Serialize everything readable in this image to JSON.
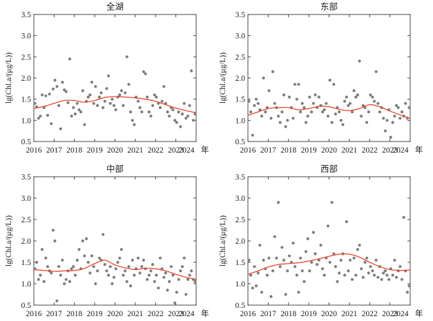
{
  "figure": {
    "unit_suffix": "年"
  },
  "colors": {
    "points": "#7d7d7d",
    "trend": "#e8442c",
    "axes": "#333333"
  },
  "chart_data": [
    {
      "type": "scatter",
      "title": "全湖",
      "ylabel": "lg(Chl.a/(μg/L))",
      "xlabel": "",
      "xlim": [
        2016,
        2024
      ],
      "ylim": [
        0.5,
        3.5
      ],
      "xticks": [
        2016,
        2017,
        2018,
        2019,
        2020,
        2021,
        2022,
        2023,
        2024
      ],
      "yticks": [
        0.5,
        1.0,
        1.5,
        2.0,
        2.5,
        3.0,
        3.5
      ],
      "points": {
        "x": [
          2016.05,
          2016.14,
          2016.23,
          2016.32,
          2016.41,
          2016.5,
          2016.59,
          2016.68,
          2016.77,
          2016.86,
          2016.95,
          2017.04,
          2017.14,
          2017.23,
          2017.32,
          2017.41,
          2017.5,
          2017.59,
          2017.68,
          2017.77,
          2017.86,
          2017.95,
          2018.04,
          2018.14,
          2018.23,
          2018.32,
          2018.41,
          2018.5,
          2018.59,
          2018.68,
          2018.77,
          2018.86,
          2018.95,
          2019.04,
          2019.14,
          2019.23,
          2019.32,
          2019.41,
          2019.5,
          2019.59,
          2019.68,
          2019.77,
          2019.86,
          2019.95,
          2020.04,
          2020.14,
          2020.23,
          2020.32,
          2020.41,
          2020.5,
          2020.59,
          2020.68,
          2020.77,
          2020.86,
          2020.95,
          2021.04,
          2021.14,
          2021.23,
          2021.32,
          2021.41,
          2021.5,
          2021.59,
          2021.68,
          2021.77,
          2021.86,
          2021.95,
          2022.04,
          2022.14,
          2022.23,
          2022.32,
          2022.41,
          2022.5,
          2022.59,
          2022.68,
          2022.77,
          2022.86,
          2022.95,
          2023.04,
          2023.14,
          2023.23,
          2023.32,
          2023.41,
          2023.5,
          2023.59,
          2023.68,
          2023.77,
          2023.86,
          2023.95
        ],
        "y": [
          1.4,
          1.32,
          1.05,
          1.1,
          1.6,
          1.3,
          1.58,
          1.12,
          1.62,
          0.92,
          1.74,
          1.95,
          1.8,
          1.35,
          0.8,
          1.9,
          1.72,
          1.68,
          1.42,
          2.45,
          1.1,
          1.3,
          1.15,
          1.4,
          1.25,
          1.2,
          1.7,
          0.9,
          1.45,
          1.55,
          1.6,
          1.9,
          1.4,
          1.8,
          1.35,
          1.55,
          1.65,
          1.3,
          1.45,
          1.75,
          2.05,
          1.4,
          1.5,
          1.35,
          1.25,
          1.55,
          1.6,
          1.7,
          1.35,
          1.65,
          2.5,
          1.85,
          1.2,
          1.0,
          0.9,
          1.55,
          1.45,
          1.3,
          1.2,
          2.15,
          2.1,
          1.55,
          1.2,
          1.1,
          1.35,
          1.6,
          1.55,
          1.4,
          1.3,
          1.45,
          1.8,
          1.4,
          1.2,
          1.1,
          1.3,
          1.25,
          1.0,
          0.95,
          1.2,
          0.85,
          1.15,
          1.4,
          1.05,
          1.1,
          1.35,
          2.17,
          1.0,
          1.15
        ]
      },
      "trend": {
        "x": [
          2016.0,
          2016.5,
          2017.0,
          2017.5,
          2018.0,
          2018.5,
          2019.0,
          2019.5,
          2020.0,
          2020.5,
          2021.0,
          2021.5,
          2022.0,
          2022.5,
          2023.0,
          2023.5,
          2024.0
        ],
        "y": [
          1.28,
          1.33,
          1.4,
          1.47,
          1.47,
          1.43,
          1.47,
          1.54,
          1.56,
          1.55,
          1.53,
          1.5,
          1.45,
          1.37,
          1.29,
          1.23,
          1.18
        ]
      }
    },
    {
      "type": "scatter",
      "title": "东部",
      "ylabel": "lg(Chl.a/(μg/L))",
      "xlabel": "",
      "xlim": [
        2016,
        2024
      ],
      "ylim": [
        0.5,
        3.5
      ],
      "xticks": [
        2016,
        2017,
        2018,
        2019,
        2020,
        2021,
        2022,
        2023,
        2024
      ],
      "yticks": [
        0.5,
        1.0,
        1.5,
        2.0,
        2.5,
        3.0,
        3.5
      ],
      "points": {
        "x": [
          2016.05,
          2016.14,
          2016.23,
          2016.32,
          2016.41,
          2016.5,
          2016.59,
          2016.68,
          2016.77,
          2016.86,
          2016.95,
          2017.04,
          2017.14,
          2017.23,
          2017.32,
          2017.41,
          2017.5,
          2017.59,
          2017.68,
          2017.77,
          2017.86,
          2017.95,
          2018.04,
          2018.14,
          2018.23,
          2018.32,
          2018.41,
          2018.5,
          2018.59,
          2018.68,
          2018.77,
          2018.86,
          2018.95,
          2019.04,
          2019.14,
          2019.23,
          2019.32,
          2019.41,
          2019.5,
          2019.59,
          2019.68,
          2019.77,
          2019.86,
          2019.95,
          2020.04,
          2020.14,
          2020.23,
          2020.32,
          2020.41,
          2020.5,
          2020.59,
          2020.68,
          2020.77,
          2020.86,
          2020.95,
          2021.04,
          2021.14,
          2021.23,
          2021.32,
          2021.41,
          2021.5,
          2021.59,
          2021.68,
          2021.77,
          2021.86,
          2021.95,
          2022.04,
          2022.14,
          2022.23,
          2022.32,
          2022.41,
          2022.5,
          2022.59,
          2022.68,
          2022.77,
          2022.86,
          2022.95,
          2023.04,
          2023.14,
          2023.23,
          2023.32,
          2023.41,
          2023.5,
          2023.59,
          2023.68,
          2023.77,
          2023.86,
          2023.95
        ],
        "y": [
          1.45,
          1.2,
          0.65,
          1.35,
          1.5,
          1.4,
          1.25,
          1.1,
          2.0,
          1.2,
          1.3,
          1.7,
          1.05,
          2.15,
          1.4,
          1.3,
          1.1,
          0.95,
          1.2,
          1.6,
          0.85,
          1.0,
          1.55,
          1.3,
          1.05,
          1.85,
          1.5,
          1.85,
          1.2,
          1.4,
          1.3,
          0.95,
          1.1,
          1.55,
          1.2,
          1.4,
          1.6,
          1.3,
          1.55,
          1.35,
          1.2,
          1.25,
          1.4,
          1.1,
          1.95,
          0.95,
          1.85,
          1.15,
          1.3,
          1.2,
          1.0,
          0.9,
          1.45,
          1.55,
          1.35,
          1.4,
          1.2,
          1.7,
          1.55,
          1.6,
          2.4,
          1.1,
          1.35,
          1.3,
          0.95,
          1.2,
          1.6,
          1.55,
          1.45,
          2.15,
          1.4,
          1.2,
          1.3,
          1.05,
          0.75,
          1.0,
          1.25,
          0.6,
          0.95,
          1.1,
          1.35,
          1.3,
          1.05,
          1.2,
          1.1,
          1.4,
          1.05,
          1.3
        ]
      },
      "trend": {
        "x": [
          2016.0,
          2016.5,
          2017.0,
          2017.5,
          2018.0,
          2018.5,
          2019.0,
          2019.5,
          2020.0,
          2020.5,
          2021.0,
          2021.5,
          2022.0,
          2022.5,
          2023.0,
          2023.5,
          2024.0
        ],
        "y": [
          1.12,
          1.2,
          1.28,
          1.3,
          1.3,
          1.25,
          1.28,
          1.33,
          1.32,
          1.26,
          1.23,
          1.28,
          1.37,
          1.32,
          1.22,
          1.13,
          1.05
        ]
      }
    },
    {
      "type": "scatter",
      "title": "中部",
      "ylabel": "lg(Chl.a/(μg/L))",
      "xlabel": "",
      "xlim": [
        2016,
        2024
      ],
      "ylim": [
        0.5,
        3.5
      ],
      "xticks": [
        2016,
        2017,
        2018,
        2019,
        2020,
        2021,
        2022,
        2023,
        2024
      ],
      "yticks": [
        0.5,
        1.0,
        1.5,
        2.0,
        2.5,
        3.0,
        3.5
      ],
      "points": {
        "x": [
          2016.05,
          2016.14,
          2016.23,
          2016.32,
          2016.41,
          2016.5,
          2016.59,
          2016.68,
          2016.77,
          2016.86,
          2016.95,
          2017.04,
          2017.14,
          2017.23,
          2017.32,
          2017.41,
          2017.5,
          2017.59,
          2017.68,
          2017.77,
          2017.86,
          2017.95,
          2018.04,
          2018.14,
          2018.23,
          2018.32,
          2018.41,
          2018.5,
          2018.59,
          2018.68,
          2018.77,
          2018.86,
          2018.95,
          2019.04,
          2019.14,
          2019.23,
          2019.32,
          2019.41,
          2019.5,
          2019.59,
          2019.68,
          2019.77,
          2019.86,
          2019.95,
          2020.04,
          2020.14,
          2020.23,
          2020.32,
          2020.41,
          2020.5,
          2020.59,
          2020.68,
          2020.77,
          2020.86,
          2020.95,
          2021.04,
          2021.14,
          2021.23,
          2021.32,
          2021.41,
          2021.5,
          2021.59,
          2021.68,
          2021.77,
          2021.86,
          2021.95,
          2022.04,
          2022.14,
          2022.23,
          2022.32,
          2022.41,
          2022.5,
          2022.59,
          2022.68,
          2022.77,
          2022.86,
          2022.95,
          2023.04,
          2023.14,
          2023.23,
          2023.32,
          2023.41,
          2023.5,
          2023.59,
          2023.68,
          2023.77,
          2023.86,
          2023.95
        ],
        "y": [
          1.35,
          1.5,
          1.1,
          1.2,
          1.8,
          1.05,
          1.6,
          1.4,
          1.3,
          1.25,
          2.25,
          2.0,
          0.6,
          1.4,
          1.2,
          1.55,
          1.0,
          1.1,
          1.3,
          1.05,
          1.35,
          1.4,
          1.2,
          1.55,
          1.8,
          1.35,
          2.0,
          1.65,
          2.05,
          1.5,
          1.25,
          1.65,
          1.4,
          1.0,
          1.3,
          1.6,
          1.55,
          2.15,
          1.45,
          1.3,
          1.2,
          1.4,
          1.0,
          1.15,
          1.35,
          1.5,
          1.6,
          1.8,
          1.2,
          1.3,
          1.05,
          1.4,
          0.95,
          1.55,
          1.2,
          1.35,
          1.6,
          1.25,
          1.4,
          1.55,
          1.35,
          1.1,
          1.2,
          1.3,
          1.45,
          1.05,
          1.2,
          0.9,
          1.6,
          1.35,
          1.15,
          1.25,
          0.85,
          1.05,
          1.4,
          1.2,
          0.55,
          0.8,
          1.1,
          1.3,
          1.4,
          1.6,
          0.75,
          1.1,
          1.2,
          1.3,
          1.1,
          1.05
        ]
      },
      "trend": {
        "x": [
          2016.0,
          2016.5,
          2017.0,
          2017.5,
          2018.0,
          2018.5,
          2019.0,
          2019.5,
          2020.0,
          2020.5,
          2021.0,
          2021.5,
          2022.0,
          2022.5,
          2023.0,
          2023.5,
          2024.0
        ],
        "y": [
          1.33,
          1.31,
          1.29,
          1.3,
          1.31,
          1.36,
          1.47,
          1.55,
          1.44,
          1.37,
          1.33,
          1.36,
          1.35,
          1.3,
          1.22,
          1.15,
          1.1
        ]
      }
    },
    {
      "type": "scatter",
      "title": "西部",
      "ylabel": "lg(Chl.a/(μg/L))",
      "xlabel": "",
      "xlim": [
        2016,
        2024
      ],
      "ylim": [
        0.5,
        3.5
      ],
      "xticks": [
        2016,
        2017,
        2018,
        2019,
        2020,
        2021,
        2022,
        2023,
        2024
      ],
      "yticks": [
        0.5,
        1.0,
        1.5,
        2.0,
        2.5,
        3.0,
        3.5
      ],
      "points": {
        "x": [
          2016.05,
          2016.14,
          2016.23,
          2016.32,
          2016.41,
          2016.5,
          2016.59,
          2016.68,
          2016.77,
          2016.86,
          2016.95,
          2017.04,
          2017.14,
          2017.23,
          2017.32,
          2017.41,
          2017.5,
          2017.59,
          2017.68,
          2017.77,
          2017.86,
          2017.95,
          2018.04,
          2018.14,
          2018.23,
          2018.32,
          2018.41,
          2018.5,
          2018.59,
          2018.68,
          2018.77,
          2018.86,
          2018.95,
          2019.04,
          2019.14,
          2019.23,
          2019.32,
          2019.41,
          2019.5,
          2019.59,
          2019.68,
          2019.77,
          2019.86,
          2019.95,
          2020.04,
          2020.14,
          2020.23,
          2020.32,
          2020.41,
          2020.5,
          2020.59,
          2020.68,
          2020.77,
          2020.86,
          2020.95,
          2021.04,
          2021.14,
          2021.23,
          2021.32,
          2021.41,
          2021.5,
          2021.59,
          2021.68,
          2021.77,
          2021.86,
          2021.95,
          2022.04,
          2022.14,
          2022.23,
          2022.32,
          2022.41,
          2022.5,
          2022.59,
          2022.68,
          2022.77,
          2022.86,
          2022.95,
          2023.04,
          2023.14,
          2023.23,
          2023.32,
          2023.41,
          2023.5,
          2023.59,
          2023.68,
          2023.77,
          2023.86,
          2023.95
        ],
        "y": [
          1.55,
          1.2,
          0.9,
          1.4,
          0.95,
          1.25,
          1.9,
          0.8,
          1.55,
          1.35,
          1.2,
          1.6,
          0.7,
          1.3,
          2.1,
          1.6,
          2.9,
          1.4,
          1.85,
          1.55,
          0.75,
          1.3,
          1.65,
          1.5,
          1.95,
          1.4,
          1.2,
          0.8,
          1.6,
          1.3,
          1.05,
          1.75,
          2.05,
          1.3,
          1.5,
          2.2,
          1.7,
          1.45,
          1.55,
          1.9,
          1.35,
          1.2,
          1.6,
          2.35,
          1.5,
          2.9,
          1.7,
          1.4,
          1.05,
          1.25,
          1.55,
          1.7,
          1.2,
          2.45,
          1.3,
          1.55,
          1.1,
          1.6,
          1.2,
          1.8,
          1.9,
          1.35,
          1.15,
          1.5,
          1.6,
          1.25,
          1.4,
          1.3,
          1.2,
          1.55,
          1.15,
          1.4,
          1.1,
          1.25,
          1.3,
          1.2,
          1.1,
          1.35,
          1.2,
          1.55,
          1.15,
          1.3,
          1.4,
          1.1,
          2.55,
          1.3,
          0.8,
          0.95
        ]
      },
      "trend": {
        "x": [
          2016.0,
          2016.5,
          2017.0,
          2017.5,
          2018.0,
          2018.5,
          2019.0,
          2019.5,
          2020.0,
          2020.5,
          2021.0,
          2021.5,
          2022.0,
          2022.5,
          2023.0,
          2023.5,
          2024.0
        ],
        "y": [
          1.22,
          1.3,
          1.39,
          1.45,
          1.47,
          1.49,
          1.53,
          1.58,
          1.64,
          1.69,
          1.69,
          1.62,
          1.5,
          1.4,
          1.33,
          1.31,
          1.32
        ]
      }
    }
  ]
}
